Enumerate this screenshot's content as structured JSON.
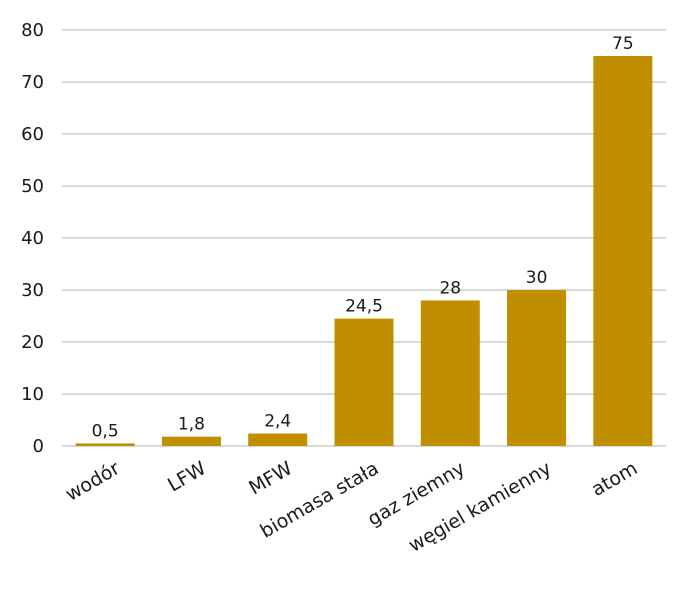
{
  "chart_data": {
    "type": "bar",
    "categories": [
      "wodór",
      "LFW",
      "MFW",
      "biomasa stała",
      "gaz ziemny",
      "węgiel kamienny",
      "atom"
    ],
    "values": [
      0.5,
      1.8,
      2.4,
      24.5,
      28,
      30,
      75
    ],
    "data_labels": [
      "0,5",
      "1,8",
      "2,4",
      "24,5",
      "28",
      "30",
      "75"
    ],
    "ylim": [
      0,
      80
    ],
    "yticks": [
      0,
      10,
      20,
      30,
      40,
      50,
      60,
      70,
      80
    ],
    "grid": true,
    "bar_color": "#BF8F00",
    "grid_color": "#D9D9D9"
  }
}
